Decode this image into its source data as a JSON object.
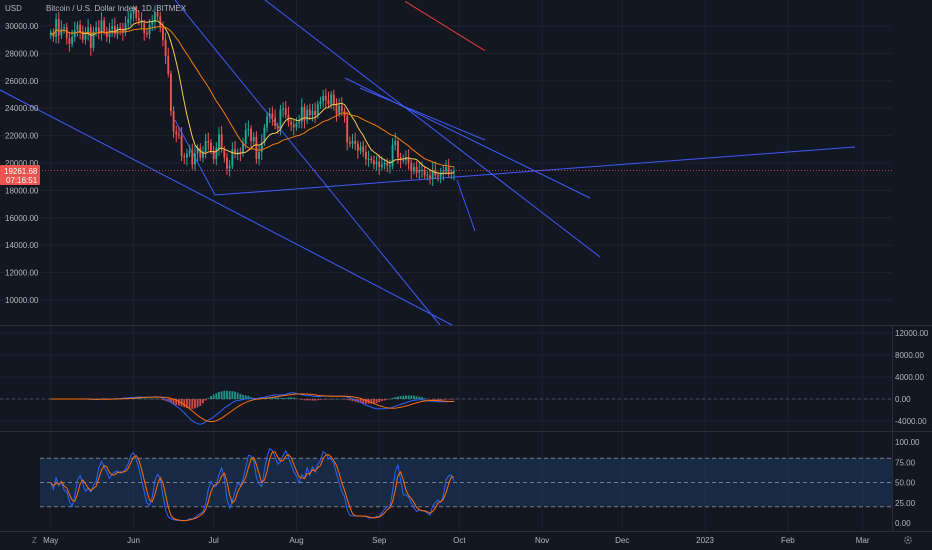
{
  "header": {
    "currency": "USD",
    "title": "Bitcoin / U.S. Dollar Index, 1D, BITMEX"
  },
  "price_tag": {
    "value": "19261.68",
    "countdown": "07:16:51"
  },
  "footer": {
    "zoom_icon": "Z",
    "settings_icon": "gear-icon"
  },
  "colors": {
    "background": "#131722",
    "grid": "#1e222d",
    "up": "#26a69a",
    "down": "#ef5350",
    "trendline": "#3d5afe",
    "ma_fast": "#f7c948",
    "ma_mid": "#f57c00",
    "ma_slow": "#e53935",
    "stoch_k": "#2962ff",
    "stoch_d": "#ff6d00",
    "stoch_band": "#1e3a5f"
  },
  "chart_data": [
    {
      "type": "candlestick",
      "title": "Bitcoin / U.S. Dollar Index, 1D, BITMEX",
      "ylabel": "USD",
      "ylim": [
        9000,
        31000
      ],
      "yticks": [
        30000,
        28000,
        26000,
        24000,
        22000,
        20000,
        18000,
        16000,
        14000,
        12000,
        10000
      ],
      "ytick_labels": [
        "30000.00",
        "28000.00",
        "26000.00",
        "24000.00",
        "22000.00",
        "20000.00",
        "18000.00",
        "16000.00",
        "14000.00",
        "12000.00",
        "10000.00"
      ],
      "x_start": "2022-05-01",
      "xlim": [
        "2022-04-12",
        "2023-03-12"
      ],
      "xticks": [
        "2022-05-01",
        "2022-06-01",
        "2022-07-01",
        "2022-08-01",
        "2022-09-01",
        "2022-10-01",
        "2022-11-01",
        "2022-12-01",
        "2023-01-01",
        "2023-02-01",
        "2023-03-01"
      ],
      "xtick_labels": [
        "May",
        "Jun",
        "Jul",
        "Aug",
        "Sep",
        "Oct",
        "Nov",
        "Dec",
        "2023",
        "Feb",
        "Mar"
      ],
      "closes": [
        29500,
        29200,
        30500,
        29300,
        29800,
        29900,
        29100,
        28700,
        29200,
        29700,
        30100,
        29600,
        29000,
        29400,
        29900,
        28400,
        29600,
        29900,
        29500,
        30400,
        29600,
        29200,
        29800,
        30000,
        29400,
        29900,
        29800,
        29500,
        30200,
        30500,
        30900,
        31400,
        30600,
        30400,
        30200,
        29500,
        29400,
        30100,
        30300,
        31000,
        30700,
        29900,
        29000,
        27800,
        26500,
        23800,
        22300,
        22100,
        22000,
        20500,
        20400,
        20700,
        20900,
        19900,
        20700,
        21100,
        20400,
        20800,
        21600,
        21500,
        20900,
        20300,
        21100,
        22100,
        21000,
        20400,
        19600,
        19800,
        21000,
        20700,
        20800,
        20700,
        21400,
        22400,
        22500,
        21600,
        21900,
        20300,
        20800,
        21500,
        22600,
        23400,
        23600,
        23300,
        22700,
        22500,
        23900,
        24000,
        23500,
        23000,
        22800,
        22600,
        22900,
        23000,
        24100,
        23100,
        23900,
        23500,
        23800,
        23500,
        24300,
        24500,
        24900,
        24600,
        24300,
        25000,
        24300,
        23600,
        24200,
        23800,
        23400,
        21500,
        21400,
        21600,
        21400,
        20900,
        21200,
        20800,
        20300,
        20300,
        20200,
        19900,
        20100,
        19700,
        19900,
        20000,
        19800,
        19800,
        21300,
        21600,
        20400,
        20200,
        20200,
        20400,
        20000,
        19400,
        19700,
        19300,
        19500,
        19500,
        19100,
        19100,
        18900,
        19500,
        19100,
        19000,
        19300,
        19400,
        19700,
        19300,
        19300,
        19400
      ]
    },
    {
      "type": "histogram",
      "yticks": [
        12000,
        8000,
        4000,
        0,
        -4000
      ],
      "ytick_labels": [
        "12000.00",
        "8000.00",
        "4000.00",
        "0.00",
        "-4000.00"
      ],
      "ylim": [
        -5000,
        13000
      ]
    },
    {
      "type": "line",
      "yticks": [
        100,
        75,
        50,
        25,
        0
      ],
      "ytick_labels": [
        "100.00",
        "75.00",
        "50.00",
        "25.00",
        "0.00"
      ],
      "ylim": [
        -8,
        108
      ],
      "band": [
        20,
        80
      ],
      "midline": 50
    }
  ]
}
